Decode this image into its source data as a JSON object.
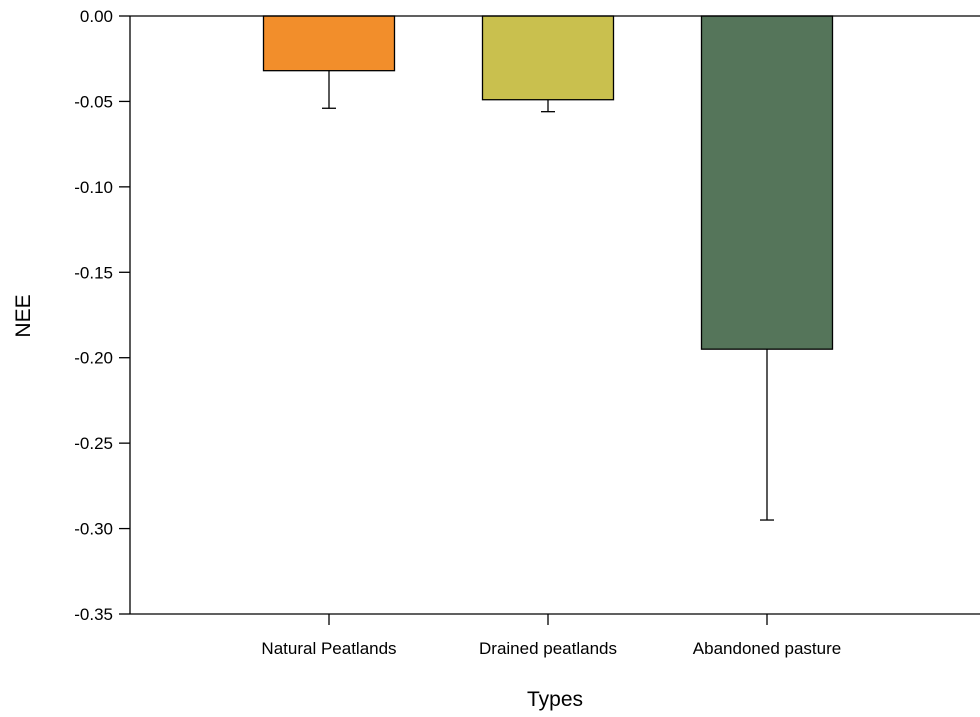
{
  "chart_data": {
    "type": "bar",
    "xlabel": "Types",
    "ylabel": "NEE",
    "categories": [
      "Natural Peatlands",
      "Drained peatlands",
      "Abandoned pasture"
    ],
    "values": [
      -0.032,
      -0.049,
      -0.195
    ],
    "error_bars": [
      0.022,
      0.007,
      0.1
    ],
    "colors": [
      "#f28e2b",
      "#c9c04e",
      "#55755a"
    ],
    "ylim": [
      -0.35,
      0.0
    ],
    "yticks": [
      "0.00",
      "-0.05",
      "-0.10",
      "-0.15",
      "-0.20",
      "-0.25",
      "-0.30",
      "-0.35"
    ],
    "ytick_values": [
      0.0,
      -0.05,
      -0.1,
      -0.15,
      -0.2,
      -0.25,
      -0.3,
      -0.35
    ],
    "grid": false
  }
}
